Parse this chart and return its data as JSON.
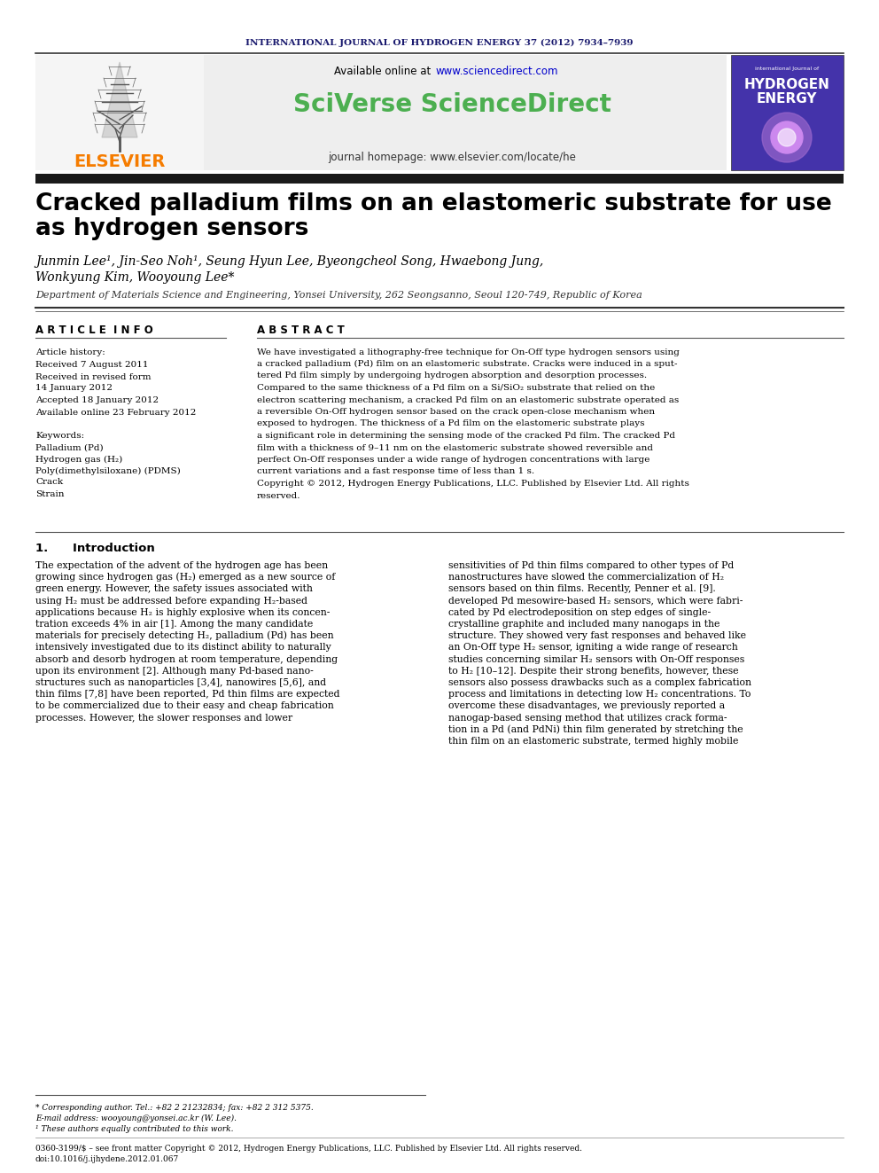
{
  "journal_header": "INTERNATIONAL JOURNAL OF HYDROGEN ENERGY 37 (2012) 7934–7939",
  "available_online": "Available online at www.sciencedirect.com",
  "sciverse_text": "SciVerse ScienceDirect",
  "journal_homepage": "journal homepage: www.elsevier.com/locate/he",
  "elsevier_text": "ELSEVIER",
  "title_line1": "Cracked palladium films on an elastomeric substrate for use",
  "title_line2": "as hydrogen sensors",
  "authors": "Junmin Lee¹, Jin-Seo Noh¹, Seung Hyun Lee, Byeongcheol Song, Hwaebong Jung,",
  "authors2": "Wonkyung Kim, Wooyoung Lee*",
  "affiliation": "Department of Materials Science and Engineering, Yonsei University, 262 Seongsanno, Seoul 120-749, Republic of Korea",
  "article_info_header": "A R T I C L E  I N F O",
  "abstract_header": "A B S T R A C T",
  "article_history_label": "Article history:",
  "received1": "Received 7 August 2011",
  "received2": "Received in revised form",
  "date_revised": "14 January 2012",
  "accepted": "Accepted 18 January 2012",
  "available_online2": "Available online 23 February 2012",
  "keywords_label": "Keywords:",
  "keyword1": "Palladium (Pd)",
  "keyword2": "Hydrogen gas (H₂)",
  "keyword3": "Poly(dimethylsiloxane) (PDMS)",
  "keyword4": "Crack",
  "keyword5": "Strain",
  "section1_header": "1.      Introduction",
  "intro1_lines": [
    "The expectation of the advent of the hydrogen age has been",
    "growing since hydrogen gas (H₂) emerged as a new source of",
    "green energy. However, the safety issues associated with",
    "using H₂ must be addressed before expanding H₂-based",
    "applications because H₂ is highly explosive when its concen-",
    "tration exceeds 4% in air [1]. Among the many candidate",
    "materials for precisely detecting H₂, palladium (Pd) has been",
    "intensively investigated due to its distinct ability to naturally",
    "absorb and desorb hydrogen at room temperature, depending",
    "upon its environment [2]. Although many Pd-based nano-",
    "structures such as nanoparticles [3,4], nanowires [5,6], and",
    "thin films [7,8] have been reported, Pd thin films are expected",
    "to be commercialized due to their easy and cheap fabrication",
    "processes. However, the slower responses and lower"
  ],
  "intro2_lines": [
    "sensitivities of Pd thin films compared to other types of Pd",
    "nanostructures have slowed the commercialization of H₂",
    "sensors based on thin films. Recently, Penner et al. [9].",
    "developed Pd mesowire-based H₂ sensors, which were fabri-",
    "cated by Pd electrodeposition on step edges of single-",
    "crystalline graphite and included many nanogaps in the",
    "structure. They showed very fast responses and behaved like",
    "an On-Off type H₂ sensor, igniting a wide range of research",
    "studies concerning similar H₂ sensors with On-Off responses",
    "to H₂ [10–12]. Despite their strong benefits, however, these",
    "sensors also possess drawbacks such as a complex fabrication",
    "process and limitations in detecting low H₂ concentrations. To",
    "overcome these disadvantages, we previously reported a",
    "nanogap-based sensing method that utilizes crack forma-",
    "tion in a Pd (and PdNi) thin film generated by stretching the",
    "thin film on an elastomeric substrate, termed highly mobile"
  ],
  "abstract_lines": [
    "We have investigated a lithography-free technique for On-Off type hydrogen sensors using",
    "a cracked palladium (Pd) film on an elastomeric substrate. Cracks were induced in a sput-",
    "tered Pd film simply by undergoing hydrogen absorption and desorption processes.",
    "Compared to the same thickness of a Pd film on a Si/SiO₂ substrate that relied on the",
    "electron scattering mechanism, a cracked Pd film on an elastomeric substrate operated as",
    "a reversible On-Off hydrogen sensor based on the crack open-close mechanism when",
    "exposed to hydrogen. The thickness of a Pd film on the elastomeric substrate plays",
    "a significant role in determining the sensing mode of the cracked Pd film. The cracked Pd",
    "film with a thickness of 9–11 nm on the elastomeric substrate showed reversible and",
    "perfect On-Off responses under a wide range of hydrogen concentrations with large",
    "current variations and a fast response time of less than 1 s.",
    "Copyright © 2012, Hydrogen Energy Publications, LLC. Published by Elsevier Ltd. All rights",
    "reserved."
  ],
  "footnote_star": "* Corresponding author. Tel.: +82 2 21232834; fax: +82 2 312 5375.",
  "footnote_email": "E-mail address: wooyoung@yonsei.ac.kr (W. Lee).",
  "footnote_1": "¹ These authors equally contributed to this work.",
  "footnote_bottom": "0360-3199/$ – see front matter Copyright © 2012, Hydrogen Energy Publications, LLC. Published by Elsevier Ltd. All rights reserved.",
  "footnote_doi": "doi:10.1016/j.ijhydene.2012.01.067",
  "bg_color": "#ffffff",
  "journal_title_color": "#1a1a6e",
  "sciverse_color": "#4caf50",
  "elsevier_color": "#f57c00",
  "url_color": "#0000cc",
  "dark_bar_color": "#1a1a1a"
}
